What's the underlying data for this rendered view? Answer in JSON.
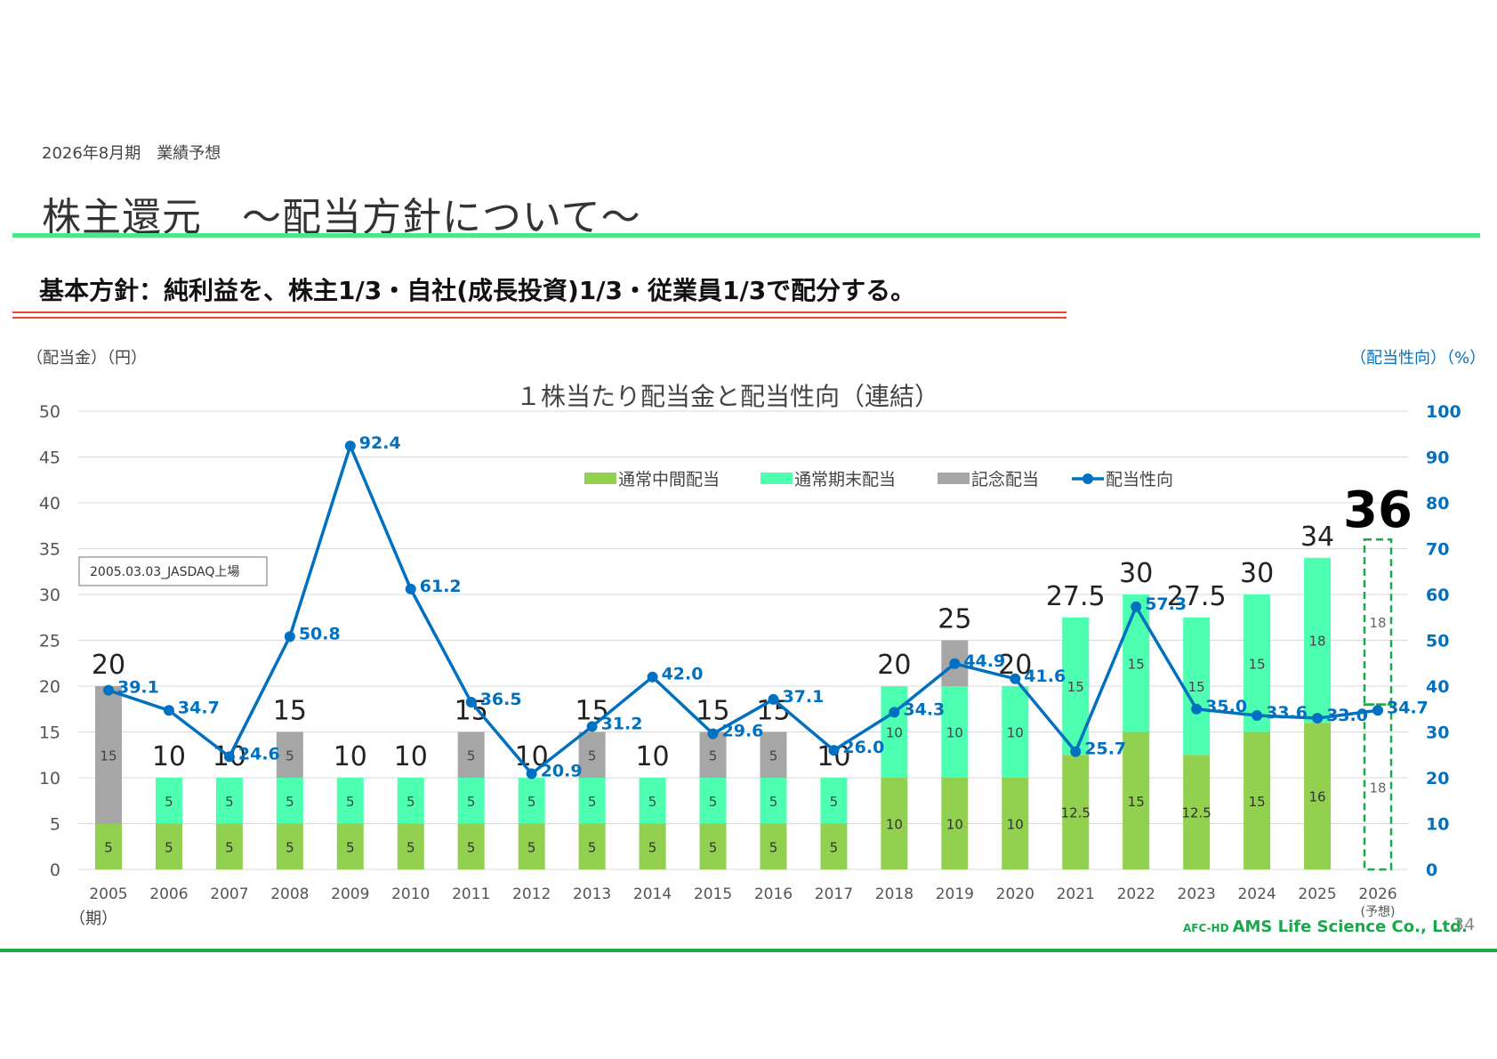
{
  "page": {
    "section_label": "2026年8月期　業績予想",
    "title": "株主還元　～配当方針について～",
    "policy": "基本方針：純利益を、株主1/3・自社(成長投資)1/3・従業員1/3で配分する。",
    "company_prefix": "AFC-HD",
    "company_name": "AMS Life Science Co., Ltd.",
    "page_number": "34"
  },
  "colors": {
    "interim": "#92d050",
    "yearend": "#4dffb0",
    "commemorative": "#a6a6a6",
    "payout": "#0070c0",
    "accent_green": "#1aa84a",
    "title_rule": "#4de68a",
    "policy_rule": "#e8452f"
  },
  "chart_data": {
    "type": "bar",
    "title": "１株当たり配当金と配当性向（連結）",
    "y_left_label": "（配当金）（円）",
    "y_right_label": "（配当性向）（%）",
    "x_unit_label": "（期）",
    "forecast_label": "(予想)",
    "ylim_left": [
      0,
      50
    ],
    "ylim_right": [
      0,
      100
    ],
    "y_left_ticks": [
      0,
      5,
      10,
      15,
      20,
      25,
      30,
      35,
      40,
      45,
      50
    ],
    "y_right_ticks": [
      0,
      10,
      20,
      30,
      40,
      50,
      60,
      70,
      80,
      90,
      100
    ],
    "grid": true,
    "legend_position": "top-center",
    "annotation": "2005.03.03_JASDAQ上場",
    "categories": [
      "2005",
      "2006",
      "2007",
      "2008",
      "2009",
      "2010",
      "2011",
      "2012",
      "2013",
      "2014",
      "2015",
      "2016",
      "2017",
      "2018",
      "2019",
      "2020",
      "2021",
      "2022",
      "2023",
      "2024",
      "2025",
      "2026"
    ],
    "series": [
      {
        "name": "通常中間配当",
        "kind": "bar",
        "stack": "dividend",
        "values": [
          5,
          5,
          5,
          5,
          5,
          5,
          5,
          5,
          5,
          5,
          5,
          5,
          5,
          10,
          10,
          10,
          12.5,
          15,
          12.5,
          15,
          16,
          18
        ],
        "labels": [
          "5",
          "5",
          "5",
          "5",
          "5",
          "5",
          "5",
          "5",
          "5",
          "5",
          "5",
          "5",
          "5",
          "10",
          "10",
          "10",
          "12.5",
          "15",
          "12.5",
          "15",
          "16",
          "18"
        ]
      },
      {
        "name": "通常期末配当",
        "kind": "bar",
        "stack": "dividend",
        "values": [
          0,
          5,
          5,
          5,
          5,
          5,
          5,
          5,
          5,
          5,
          5,
          5,
          5,
          10,
          10,
          10,
          15,
          15,
          15,
          15,
          18,
          18
        ],
        "labels": [
          "",
          "5",
          "5",
          "5",
          "5",
          "5",
          "5",
          "5",
          "5",
          "5",
          "5",
          "5",
          "5",
          "10",
          "10",
          "10",
          "15",
          "15",
          "15",
          "15",
          "18",
          "18"
        ]
      },
      {
        "name": "記念配当",
        "kind": "bar",
        "stack": "dividend",
        "values": [
          15,
          0,
          0,
          5,
          0,
          0,
          5,
          0,
          5,
          0,
          5,
          5,
          0,
          0,
          5,
          0,
          0,
          0,
          0,
          0,
          0,
          0
        ],
        "labels": [
          "15",
          "",
          "",
          "5",
          "",
          "",
          "5",
          "",
          "5",
          "",
          "5",
          "5",
          "",
          "",
          "5",
          "",
          "",
          "",
          "",
          "",
          "",
          ""
        ]
      },
      {
        "name": "配当性向",
        "kind": "line",
        "axis": "right",
        "values": [
          39.1,
          34.7,
          24.6,
          50.8,
          92.4,
          61.2,
          36.5,
          20.9,
          31.2,
          42.0,
          29.6,
          37.1,
          26.0,
          34.3,
          44.9,
          41.6,
          25.7,
          57.3,
          35.0,
          33.6,
          33.0,
          34.7
        ],
        "labels": [
          "39.1",
          "34.7",
          "24.6",
          "50.8",
          "92.4",
          "61.2",
          "36.5",
          "20.9",
          "31.2",
          "42.0",
          "29.6",
          "37.1",
          "26.0",
          "34.3",
          "44.9",
          "41.6",
          "25.7",
          "57.3",
          "35.0",
          "33.6",
          "33.0",
          "34.7"
        ]
      }
    ],
    "totals": [
      "20",
      "10",
      "10",
      "15",
      "10",
      "10",
      "15",
      "10",
      "15",
      "10",
      "15",
      "15",
      "10",
      "20",
      "25",
      "20",
      "27.5",
      "30",
      "27.5",
      "30",
      "34",
      "36"
    ],
    "forecast_category": "2026"
  }
}
